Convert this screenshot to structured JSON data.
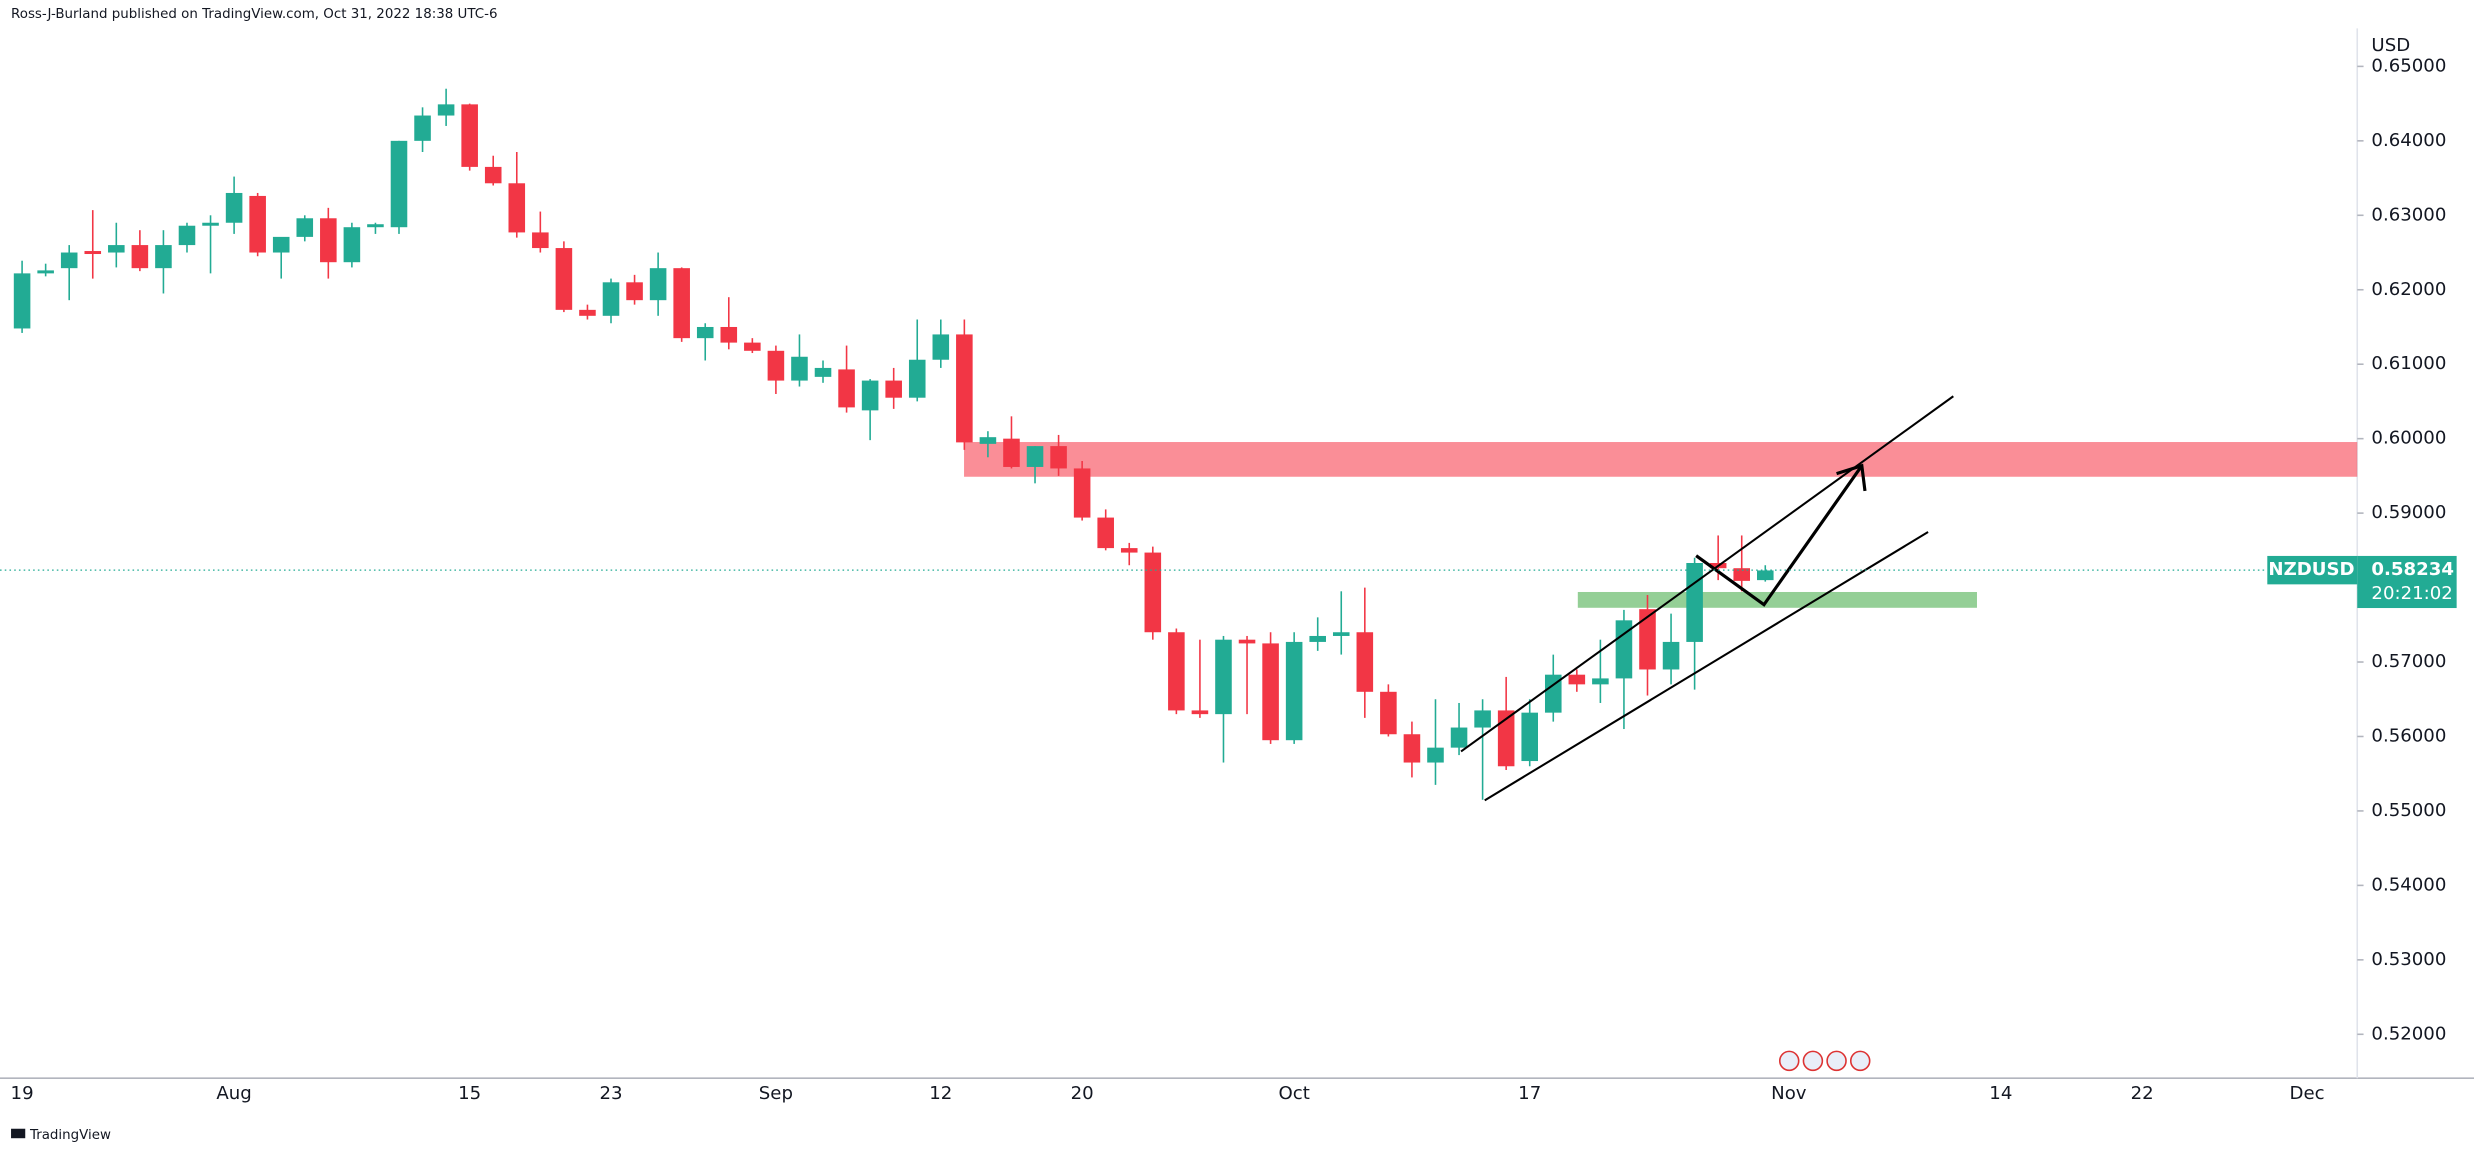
{
  "attribution": "Ross-J-Burland published on TradingView.com, Oct 31, 2022 18:38 UTC-6",
  "footer": "TradingView",
  "chart_data": {
    "type": "candlestick",
    "symbol": "NZDUSD",
    "y_axis_label": "USD",
    "countdown": "20:21:02",
    "last_price": 0.58234,
    "up_color": "#22ab94",
    "down_color": "#f23645",
    "ylim": [
      0.5141,
      0.6551
    ],
    "yticks": [
      {
        "value": 0.65,
        "label": "0.65000"
      },
      {
        "value": 0.64,
        "label": "0.64000"
      },
      {
        "value": 0.63,
        "label": "0.63000"
      },
      {
        "value": 0.62,
        "label": "0.62000"
      },
      {
        "value": 0.61,
        "label": "0.61000"
      },
      {
        "value": 0.6,
        "label": "0.60000"
      },
      {
        "value": 0.59,
        "label": "0.59000"
      },
      {
        "value": 0.58,
        "label": "0.58000"
      },
      {
        "value": 0.57,
        "label": "0.57000"
      },
      {
        "value": 0.56,
        "label": "0.56000"
      },
      {
        "value": 0.55,
        "label": "0.55000"
      },
      {
        "value": 0.54,
        "label": "0.54000"
      },
      {
        "value": 0.53,
        "label": "0.53000"
      },
      {
        "value": 0.52,
        "label": "0.52000"
      }
    ],
    "categories": [
      "19",
      null,
      null,
      null,
      null,
      null,
      null,
      null,
      null,
      "Aug",
      null,
      null,
      null,
      null,
      null,
      null,
      null,
      null,
      null,
      "15",
      null,
      null,
      null,
      null,
      null,
      "23",
      null,
      null,
      null,
      null,
      null,
      null,
      "Sep",
      null,
      null,
      null,
      null,
      null,
      null,
      "12",
      null,
      null,
      null,
      null,
      null,
      "20",
      null,
      null,
      null,
      null,
      null,
      null,
      null,
      null,
      "Oct",
      null,
      null,
      null,
      null,
      null,
      null,
      null,
      null,
      null,
      "17",
      null,
      null,
      null,
      null,
      null,
      null,
      null,
      null,
      null,
      null,
      "Nov",
      null,
      null,
      null,
      null,
      null,
      null,
      null,
      null,
      "14",
      null,
      null,
      null,
      null,
      null,
      "22",
      null,
      null,
      null,
      null,
      null,
      null,
      "Dec"
    ],
    "open": [
      0.6148,
      0.6222,
      0.6229,
      0.6252,
      0.625,
      0.626,
      0.6229,
      0.626,
      0.6286,
      0.629,
      0.6326,
      0.625,
      0.6271,
      0.6296,
      0.6237,
      0.6284,
      0.6284,
      0.64,
      0.6434,
      0.6449,
      0.6365,
      0.6343,
      0.6277,
      0.6256,
      0.6173,
      0.6165,
      0.621,
      0.6186,
      0.6229,
      0.6135,
      0.615,
      0.6129,
      0.6118,
      0.6078,
      0.6083,
      0.6093,
      0.6038,
      0.6078,
      0.6055,
      0.6106,
      0.614,
      0.5993,
      0.6,
      0.5962,
      0.599,
      0.596,
      0.5894,
      0.5853,
      0.5847,
      0.574,
      0.5635,
      0.563,
      0.573,
      0.5725,
      0.5595,
      0.5727,
      0.5735,
      0.574,
      0.566,
      0.5603,
      0.5565,
      0.5585,
      0.5612,
      0.5635,
      0.5567,
      0.5632,
      0.5683,
      0.567,
      0.5678,
      0.5771,
      0.569,
      0.5727,
      0.5833,
      0.5826,
      0.581,
      null,
      null,
      null,
      null,
      null,
      null,
      null,
      null,
      null,
      null,
      null,
      null,
      null,
      null,
      null,
      null,
      null,
      null,
      null,
      null,
      null,
      null,
      null
    ],
    "high": [
      0.6239,
      0.6235,
      0.626,
      0.6307,
      0.629,
      0.628,
      0.628,
      0.629,
      0.63,
      0.6352,
      0.633,
      0.6265,
      0.63,
      0.631,
      0.629,
      0.629,
      0.64,
      0.6445,
      0.647,
      0.645,
      0.638,
      0.6385,
      0.6305,
      0.6265,
      0.618,
      0.6215,
      0.622,
      0.625,
      0.623,
      0.6155,
      0.619,
      0.6135,
      0.6125,
      0.614,
      0.6105,
      0.6125,
      0.608,
      0.6095,
      0.616,
      0.616,
      0.616,
      0.601,
      0.603,
      0.599,
      0.6005,
      0.597,
      0.5905,
      0.586,
      0.5855,
      0.5745,
      0.573,
      0.5735,
      0.5735,
      0.574,
      0.574,
      0.576,
      0.5795,
      0.58,
      0.567,
      0.562,
      0.565,
      0.5645,
      0.565,
      0.568,
      0.565,
      0.571,
      0.569,
      0.573,
      0.577,
      0.579,
      0.5765,
      0.584,
      0.587,
      0.587,
      0.583,
      null,
      null,
      null,
      null,
      null,
      null,
      null,
      null,
      null,
      null,
      null,
      null,
      null,
      null,
      null,
      null,
      null,
      null,
      null,
      null,
      null,
      null,
      null
    ],
    "low": [
      0.6142,
      0.6218,
      0.6186,
      0.6215,
      0.623,
      0.6225,
      0.6195,
      0.625,
      0.6222,
      0.6275,
      0.6245,
      0.6215,
      0.6265,
      0.6215,
      0.623,
      0.6275,
      0.6275,
      0.6385,
      0.642,
      0.636,
      0.634,
      0.627,
      0.625,
      0.617,
      0.616,
      0.6155,
      0.618,
      0.6165,
      0.613,
      0.6105,
      0.612,
      0.6115,
      0.606,
      0.607,
      0.6075,
      0.6035,
      0.5998,
      0.604,
      0.605,
      0.6095,
      0.5985,
      0.5975,
      0.596,
      0.594,
      0.595,
      0.589,
      0.585,
      0.583,
      0.573,
      0.563,
      0.5625,
      0.5565,
      0.563,
      0.559,
      0.559,
      0.5715,
      0.571,
      0.5625,
      0.56,
      0.5545,
      0.5535,
      0.5575,
      0.5515,
      0.5555,
      0.556,
      0.562,
      0.566,
      0.5645,
      0.561,
      0.5655,
      0.567,
      0.5663,
      0.581,
      0.5795,
      0.5808,
      null,
      null,
      null,
      null,
      null,
      null,
      null,
      null,
      null,
      null,
      null,
      null,
      null,
      null,
      null,
      null,
      null,
      null,
      null,
      null,
      null,
      null,
      null
    ],
    "close": [
      0.6222,
      0.6226,
      0.625,
      0.6248,
      0.626,
      0.6229,
      0.626,
      0.6286,
      0.629,
      0.633,
      0.625,
      0.6271,
      0.6296,
      0.6237,
      0.6284,
      0.6288,
      0.64,
      0.6434,
      0.6449,
      0.6365,
      0.6343,
      0.6277,
      0.6256,
      0.6173,
      0.6165,
      0.621,
      0.6186,
      0.6229,
      0.6135,
      0.615,
      0.6129,
      0.6118,
      0.6078,
      0.611,
      0.6095,
      0.6042,
      0.6078,
      0.6055,
      0.6106,
      0.614,
      0.5995,
      0.6002,
      0.5962,
      0.599,
      0.596,
      0.5894,
      0.5853,
      0.5847,
      0.574,
      0.5635,
      0.563,
      0.573,
      0.5725,
      0.5595,
      0.5727,
      0.5735,
      0.574,
      0.566,
      0.5603,
      0.5565,
      0.5585,
      0.5612,
      0.5635,
      0.556,
      0.5632,
      0.5683,
      0.567,
      0.5678,
      0.5756,
      0.569,
      0.5727,
      0.5833,
      0.5826,
      0.5809,
      0.5823,
      null,
      null,
      null,
      null,
      null,
      null,
      null,
      null,
      null,
      null,
      null,
      null,
      null,
      null,
      null,
      null,
      null,
      null,
      null,
      null,
      null,
      null,
      null
    ]
  }
}
